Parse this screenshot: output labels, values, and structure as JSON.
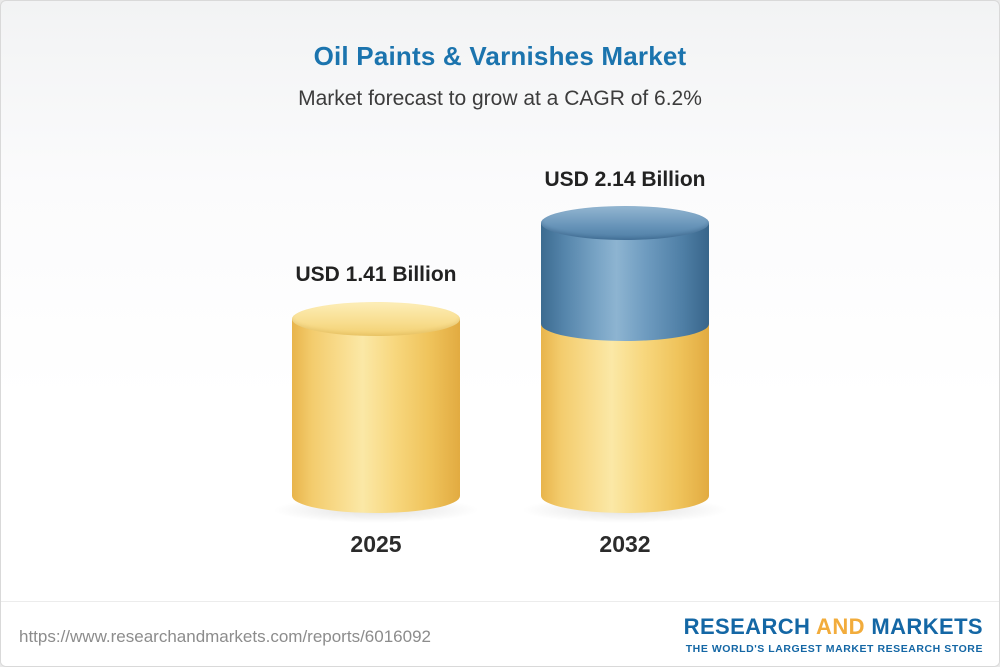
{
  "title": "Oil Paints & Varnishes Market",
  "subtitle": "Market forecast to grow at a CAGR of 6.2%",
  "chart_data": {
    "type": "bar",
    "variant": "3d-cylinder",
    "categories": [
      "2025",
      "2032"
    ],
    "values": [
      1.41,
      2.14
    ],
    "unit": "USD Billion",
    "value_labels": [
      "USD 1.41 Billion",
      "USD 2.14 Billion"
    ],
    "cagr": "6.2%",
    "title": "Oil Paints & Varnishes Market",
    "subtitle": "Market forecast to grow at a CAGR of 6.2%",
    "legend": "none",
    "grid": false,
    "colors": {
      "bar_2025": "#f6d17a",
      "bar_2032_lower": "#f6d17a",
      "bar_2032_upper": "#5b89ae"
    }
  },
  "footer": {
    "url": "https://www.researchandmarkets.com/reports/6016092",
    "logo": {
      "word1": "RESEARCH",
      "word2": "AND",
      "word3": "MARKETS",
      "tagline": "THE WORLD'S LARGEST MARKET RESEARCH STORE"
    }
  },
  "colors": {
    "title_blue": "#1b74ae",
    "logo_blue": "#1467a5",
    "logo_gold": "#f2ac3c",
    "text_dark": "#222222",
    "url_gray": "#8c8c8c"
  }
}
